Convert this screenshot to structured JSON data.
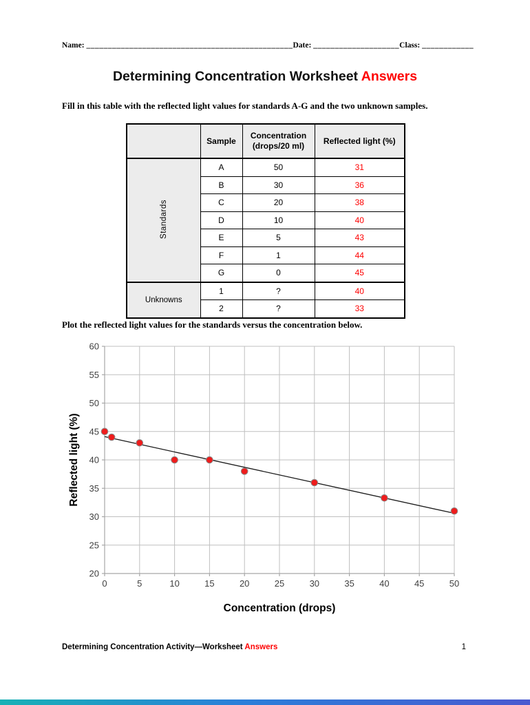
{
  "page": {
    "header": {
      "name_label": "Name:",
      "name_line": "________________________________________________",
      "date_label": "Date:",
      "date_line": "____________________",
      "class_label": "Class:",
      "class_line": "____________"
    },
    "title": {
      "black": "Determining Concentration Worksheet",
      "red": "Answers"
    },
    "para1": "Fill in this table with the reflected light values for standards A-G and the two unknown samples.",
    "para2": "Plot the reflected light values for the standards versus the concentration below.",
    "footer": {
      "left_black": "Determining Concentration Activity—Worksheet",
      "left_red": "Answers",
      "page_number": "1"
    }
  },
  "table": {
    "headers": [
      "Sample",
      "Concentration (drops/20 ml)",
      "Reflected light (%)"
    ],
    "groups": [
      {
        "label": "Standards",
        "vertical": true,
        "rows": [
          [
            "A",
            "50",
            "31"
          ],
          [
            "B",
            "30",
            "36"
          ],
          [
            "C",
            "20",
            "38"
          ],
          [
            "D",
            "10",
            "40"
          ],
          [
            "E",
            "5",
            "43"
          ],
          [
            "F",
            "1",
            "44"
          ],
          [
            "G",
            "0",
            "45"
          ]
        ]
      },
      {
        "label": "Unknowns",
        "vertical": false,
        "rows": [
          [
            "1",
            "?",
            "40"
          ],
          [
            "2",
            "?",
            "33"
          ]
        ]
      }
    ]
  },
  "chart_data": {
    "type": "scatter",
    "title": "",
    "xlabel": "Concentration (drops)",
    "ylabel": "Reflected light (%)",
    "xlim": [
      0,
      50
    ],
    "ylim": [
      20,
      60
    ],
    "x_ticks": [
      0,
      5,
      10,
      15,
      20,
      25,
      30,
      35,
      40,
      45,
      50
    ],
    "y_ticks": [
      20,
      25,
      30,
      35,
      40,
      45,
      50,
      55,
      60
    ],
    "grid": true,
    "grid_color": "#bfbfbf",
    "axis_color": "#a6a6a6",
    "marker_color": "#ee1c1c",
    "marker_outline": "#8a8a8a",
    "points": [
      {
        "x": 0,
        "y": 45
      },
      {
        "x": 1,
        "y": 44
      },
      {
        "x": 5,
        "y": 43
      },
      {
        "x": 10,
        "y": 40
      },
      {
        "x": 15,
        "y": 40
      },
      {
        "x": 20,
        "y": 38
      },
      {
        "x": 30,
        "y": 36
      },
      {
        "x": 40,
        "y": 33.3
      },
      {
        "x": 50,
        "y": 31
      }
    ],
    "trendline": {
      "x1": 0,
      "y1": 44.1,
      "x2": 50,
      "y2": 30.6,
      "color": "#1a1a1a"
    }
  }
}
